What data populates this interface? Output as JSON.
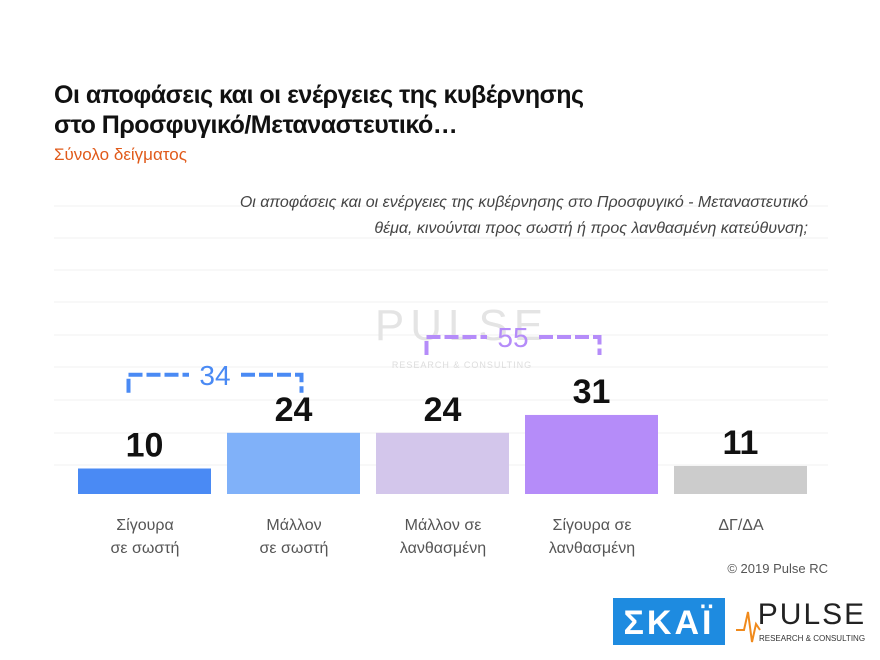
{
  "chart_data": {
    "type": "bar",
    "title": "Οι αποφάσεις και οι ενέργειες της κυβέρνησης\nστο Προσφυγικό/Μεταναστευτικό…",
    "subtitle": "Σύνολο δείγματος",
    "question": "Οι αποφάσεις και οι ενέργειες της κυβέρνησης στο Προσφυγικό - Μεταναστευτικό\nθέμα, κινούνται προς σωστή ή προς λανθασμένη κατεύθυνση;",
    "categories": [
      "Σίγουρα\nσε σωστή",
      "Μάλλον\nσε σωστή",
      "Μάλλον σε\nλανθασμένη",
      "Σίγουρα σε\nλανθασμένη",
      "ΔΓ/ΔΑ"
    ],
    "values": [
      10,
      24,
      24,
      31,
      11
    ],
    "colors": [
      "#4a8af4",
      "#80b1f9",
      "#d3c6eb",
      "#b58cf9",
      "#cccccc"
    ],
    "ylim": [
      0,
      100
    ],
    "brackets": [
      {
        "value": 34,
        "color": "#4a8af4"
      },
      {
        "value": 55,
        "color": "#b58cf9"
      }
    ],
    "copyright": "© 2019 Pulse RC",
    "logos": {
      "skai": "ΣΚΑΪ",
      "pulse": "PULSE",
      "pulse_tagline": "RESEARCH & CONSULTING"
    }
  }
}
